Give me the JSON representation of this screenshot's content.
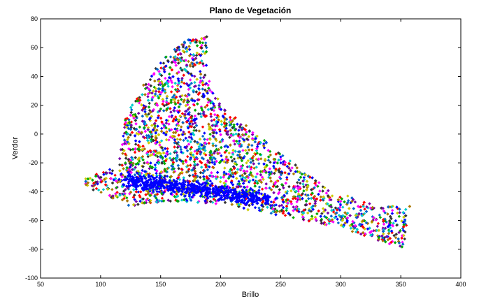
{
  "chart_data": {
    "type": "scatter",
    "title": "Plano de Vegetación",
    "xlabel": "Brillo",
    "ylabel": "Verdor",
    "xlim": [
      50,
      400
    ],
    "ylim": [
      -100,
      80
    ],
    "xticks": [
      "50",
      "100",
      "150",
      "200",
      "250",
      "300",
      "350",
      "400"
    ],
    "yticks": [
      "80",
      "60",
      "40",
      "20",
      "0",
      "-20",
      "-40",
      "-60",
      "-80",
      "-100"
    ],
    "grid": false,
    "marker": "diamond",
    "colors": [
      "#0000ff",
      "#ff0000",
      "#00aa00",
      "#cccc00",
      "#ff00ff",
      "#00cccc",
      "#333333",
      "#aa7700",
      "#7700aa",
      "#0066cc"
    ],
    "point_cloud_outline": [
      {
        "x": 85,
        "y": -32
      },
      {
        "x": 95,
        "y": -28
      },
      {
        "x": 115,
        "y": -22
      },
      {
        "x": 120,
        "y": 10
      },
      {
        "x": 135,
        "y": 35
      },
      {
        "x": 150,
        "y": 50
      },
      {
        "x": 165,
        "y": 63
      },
      {
        "x": 180,
        "y": 68
      },
      {
        "x": 189,
        "y": 72
      },
      {
        "x": 188,
        "y": 55
      },
      {
        "x": 192,
        "y": 35
      },
      {
        "x": 200,
        "y": 20
      },
      {
        "x": 230,
        "y": 0
      },
      {
        "x": 260,
        "y": -20
      },
      {
        "x": 290,
        "y": -38
      },
      {
        "x": 330,
        "y": -50
      },
      {
        "x": 358,
        "y": -50
      },
      {
        "x": 352,
        "y": -80
      },
      {
        "x": 300,
        "y": -65
      },
      {
        "x": 240,
        "y": -55
      },
      {
        "x": 190,
        "y": -48
      },
      {
        "x": 150,
        "y": -47
      },
      {
        "x": 125,
        "y": -50
      },
      {
        "x": 110,
        "y": -45
      },
      {
        "x": 90,
        "y": -38
      }
    ],
    "dense_band": [
      {
        "x": 120,
        "y": -32
      },
      {
        "x": 150,
        "y": -35
      },
      {
        "x": 180,
        "y": -38
      },
      {
        "x": 210,
        "y": -42
      },
      {
        "x": 240,
        "y": -46
      }
    ]
  }
}
